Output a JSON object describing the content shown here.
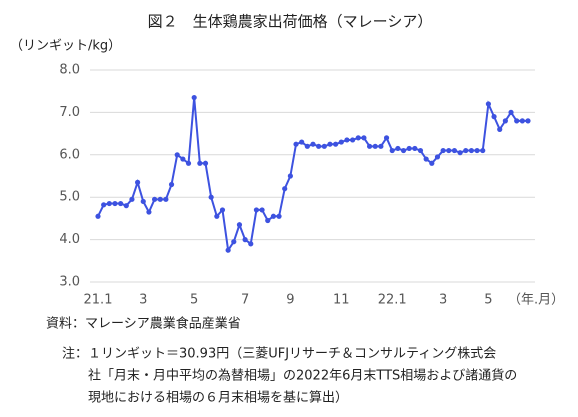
{
  "chart_data": {
    "type": "line",
    "title": "図２　生体鶏農家出荷価格（マレーシア）",
    "y_label": "（リンギット/kg）",
    "x_label": "（年.月）",
    "categories": [
      "21.1",
      null,
      null,
      null,
      null,
      null,
      null,
      null,
      "3",
      null,
      null,
      null,
      null,
      null,
      null,
      null,
      null,
      "5",
      null,
      null,
      null,
      null,
      null,
      null,
      null,
      null,
      "7",
      null,
      null,
      null,
      null,
      null,
      null,
      null,
      "9",
      null,
      null,
      null,
      null,
      null,
      null,
      null,
      null,
      "11",
      null,
      null,
      null,
      null,
      null,
      null,
      null,
      null,
      "22.1",
      null,
      null,
      null,
      null,
      null,
      null,
      null,
      null,
      "3",
      null,
      null,
      null,
      null,
      null,
      null,
      null,
      "5",
      null,
      null,
      null,
      null,
      null,
      null,
      null
    ],
    "series": [
      {
        "name": null,
        "color": "#3d52e0",
        "values": [
          4.55,
          4.82,
          4.85,
          4.85,
          4.85,
          4.8,
          4.95,
          5.35,
          4.9,
          4.65,
          4.95,
          4.95,
          4.95,
          5.3,
          6.0,
          5.9,
          5.8,
          7.35,
          5.8,
          5.8,
          5.0,
          4.55,
          4.7,
          3.75,
          3.95,
          4.35,
          4.0,
          3.9,
          4.7,
          4.7,
          4.45,
          4.55,
          4.55,
          5.2,
          5.5,
          6.25,
          6.3,
          6.2,
          6.25,
          6.2,
          6.2,
          6.25,
          6.25,
          6.3,
          6.35,
          6.35,
          6.4,
          6.4,
          6.2,
          6.2,
          6.2,
          6.4,
          6.1,
          6.15,
          6.1,
          6.15,
          6.15,
          6.1,
          5.9,
          5.8,
          5.95,
          6.1,
          6.1,
          6.1,
          6.05,
          6.1,
          6.1,
          6.1,
          6.1,
          7.2,
          6.9,
          6.6,
          6.8,
          7.0,
          6.8,
          6.8,
          6.8
        ]
      }
    ],
    "ylim": [
      3,
      8
    ],
    "yticks": [
      {
        "value": 3,
        "label": "3.0"
      },
      {
        "value": 4,
        "label": "4.0"
      },
      {
        "value": 5,
        "label": "5.0"
      },
      {
        "value": 6,
        "label": "6.0"
      },
      {
        "value": 7,
        "label": "7.0"
      },
      {
        "value": 8,
        "label": "8.0"
      }
    ],
    "grid": true
  },
  "notes": [
    "資料：マレーシア農業食品産業省",
    "注：１リンギット＝30.93円（三菱UFJリサーチ＆コンサルティング株式会",
    "社「月末・月中平均の為替相場」の2022年6月末TTS相場および諸通貨の",
    "現地における相場の６月末相場を基に算出）"
  ]
}
